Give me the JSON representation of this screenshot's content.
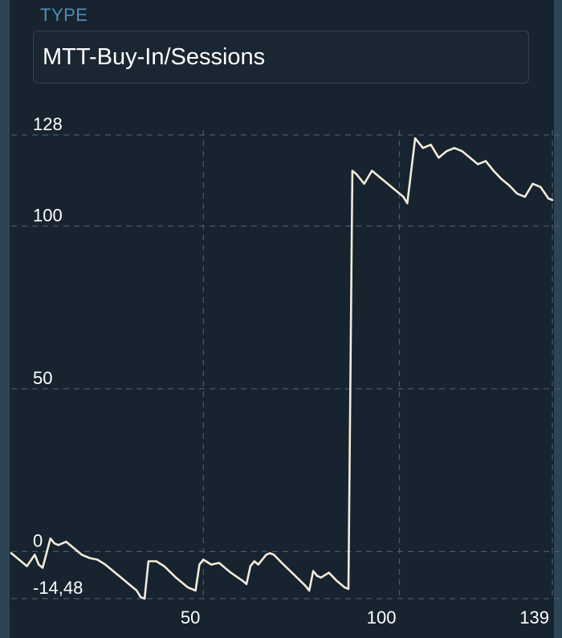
{
  "header": {
    "label": "TYPE",
    "value": "MTT-Buy-In/Sessions"
  },
  "colors": {
    "background": "#17232f",
    "label": "#4d90b8",
    "line": "#f3ecd9",
    "grid": "#4a5a66",
    "side_strip": "#2b4556"
  },
  "chart_data": {
    "type": "line",
    "title": "",
    "xlabel": "",
    "ylabel": "",
    "xlim": [
      1,
      139
    ],
    "ylim": [
      -14.48,
      128
    ],
    "grid": true,
    "y_ticks": [
      {
        "value": 128,
        "label": "128"
      },
      {
        "value": 100,
        "label": "100"
      },
      {
        "value": 50,
        "label": "50"
      },
      {
        "value": 0,
        "label": "0"
      },
      {
        "value": -14.48,
        "label": "-14,48"
      }
    ],
    "x_ticks": [
      {
        "value": 50,
        "label": "50"
      },
      {
        "value": 100,
        "label": "100"
      },
      {
        "value": 139,
        "label": "139"
      }
    ],
    "series": [
      {
        "x": [
          1,
          3,
          5,
          7,
          8,
          9,
          11,
          12,
          13,
          15,
          17,
          19,
          21,
          23,
          25,
          27,
          29,
          31,
          33,
          34,
          35,
          36,
          38,
          40,
          43,
          46,
          48,
          49,
          50,
          52,
          54,
          57,
          60,
          61,
          62,
          63,
          64,
          66,
          67,
          68,
          70,
          73,
          76,
          77,
          78,
          79,
          80,
          82,
          84,
          85,
          86,
          87,
          88,
          89,
          91,
          93,
          95,
          97,
          99,
          101,
          102,
          104,
          106,
          108,
          110,
          112,
          114,
          116,
          118,
          120,
          122,
          124,
          126,
          128,
          130,
          132,
          134,
          136,
          138,
          139
        ],
        "y": [
          -0.5,
          -2.5,
          -4.5,
          -1,
          -4,
          -5,
          4,
          2.5,
          2,
          3,
          1,
          -1,
          -2,
          -2.5,
          -4,
          -6,
          -8,
          -10,
          -12,
          -14,
          -14.5,
          -3,
          -3,
          -4.5,
          -8,
          -11,
          -12,
          -4,
          -2.5,
          -4,
          -3.5,
          -6.5,
          -9,
          -10,
          -4.5,
          -3,
          -4,
          -1,
          -0.5,
          -1,
          -3.5,
          -7,
          -10.5,
          -12,
          -6,
          -7.5,
          -8,
          -6.5,
          -9,
          -10,
          -11,
          -11.5,
          117,
          116,
          113,
          117,
          115,
          113,
          111,
          109,
          107,
          127,
          124,
          125,
          121,
          123,
          124,
          123,
          121,
          119,
          120,
          117,
          114.5,
          112.5,
          110,
          109,
          113,
          112,
          108.5,
          108
        ]
      }
    ]
  }
}
